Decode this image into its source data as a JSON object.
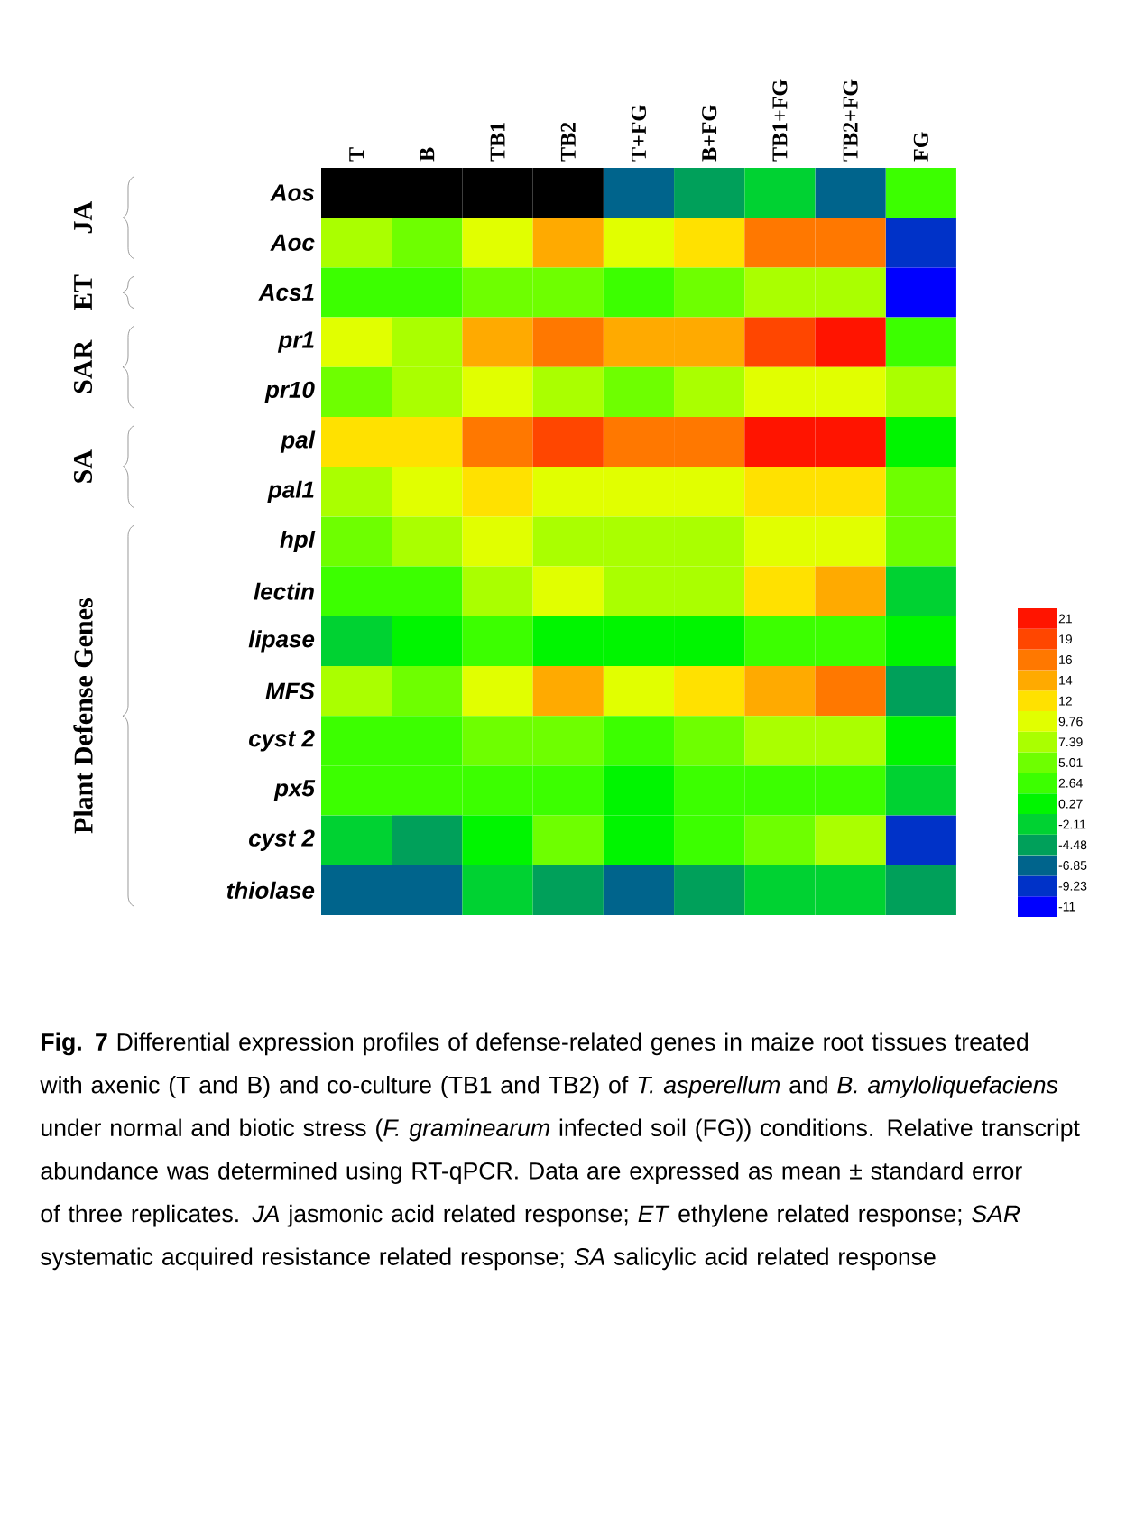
{
  "chart_data": {
    "type": "heatmap",
    "categories": [
      "T",
      "B",
      "TB1",
      "TB2",
      "T+FG",
      "B+FG",
      "TB1+FG",
      "TB2+FG",
      "FG"
    ],
    "y_categories": [
      "Aos",
      "Aoc",
      "Acs1",
      "pr1",
      "pr10",
      "pal",
      "pal1",
      "hpl",
      "lectin",
      "lipase",
      "MFS",
      "cyst 2",
      "px5",
      "cyst 2",
      "thiolase"
    ],
    "cells": [
      [
        null,
        null,
        null,
        null,
        -6.85,
        -4.48,
        -2.11,
        -6.85,
        2.64
      ],
      [
        7.39,
        5.01,
        9.76,
        14,
        9.76,
        12,
        16,
        16,
        -9.23
      ],
      [
        2.64,
        2.64,
        5.01,
        5.01,
        2.64,
        5.01,
        7.39,
        7.39,
        -11
      ],
      [
        9.76,
        7.39,
        14,
        16,
        14,
        14,
        19,
        21,
        2.64
      ],
      [
        5.01,
        7.39,
        9.76,
        7.39,
        5.01,
        7.39,
        9.76,
        9.76,
        7.39
      ],
      [
        12,
        12,
        16,
        19,
        16,
        16,
        21,
        21,
        0.27
      ],
      [
        7.39,
        9.76,
        12,
        9.76,
        9.76,
        9.76,
        12,
        12,
        5.01
      ],
      [
        5.01,
        7.39,
        9.76,
        7.39,
        7.39,
        7.39,
        9.76,
        9.76,
        5.01
      ],
      [
        2.64,
        2.64,
        7.39,
        9.76,
        7.39,
        7.39,
        12,
        14,
        -2.11
      ],
      [
        -2.11,
        0.27,
        2.64,
        0.27,
        0.27,
        0.27,
        2.64,
        2.64,
        0.27
      ],
      [
        7.39,
        5.01,
        9.76,
        14,
        9.76,
        12,
        14,
        16,
        -4.48
      ],
      [
        2.64,
        2.64,
        5.01,
        5.01,
        2.64,
        5.01,
        7.39,
        7.39,
        0.27
      ],
      [
        2.64,
        2.64,
        2.64,
        2.64,
        0.27,
        2.64,
        2.64,
        2.64,
        -2.11
      ],
      [
        -2.11,
        -4.48,
        0.27,
        5.01,
        0.27,
        2.64,
        5.01,
        7.39,
        -9.23
      ],
      [
        -6.85,
        -6.85,
        -2.11,
        -4.48,
        -6.85,
        -4.48,
        -2.11,
        -2.11,
        -4.48
      ]
    ],
    "cticks": [
      -11,
      -9.23,
      -6.85,
      -4.48,
      -2.11,
      0.27,
      2.64,
      5.01,
      7.39,
      9.76,
      12,
      14,
      16,
      19,
      21
    ],
    "annotations": [
      "JA",
      "ET",
      "SAR",
      "SA",
      "Plant Defense Genes",
      "**Fig. 7** Differential expression profiles of defense-related genes in maize root tissues treated with axenic (T and B) and co-culture (TB1 and TB2) of *T. asperellum* and *B. amyloliquefaciens* under normal and biotic stress (*F. graminearum* infected soil (FG)) conditions. Relative transcript abundance was determined using RT-qPCR. Data are expressed as mean ± standard error of three replicates. *JA* jasmonic acid related response; *ET* ethylene related response; *SAR* systematic acquired resistance related response; *SA* salicylic acid related response"
    ]
  }
}
